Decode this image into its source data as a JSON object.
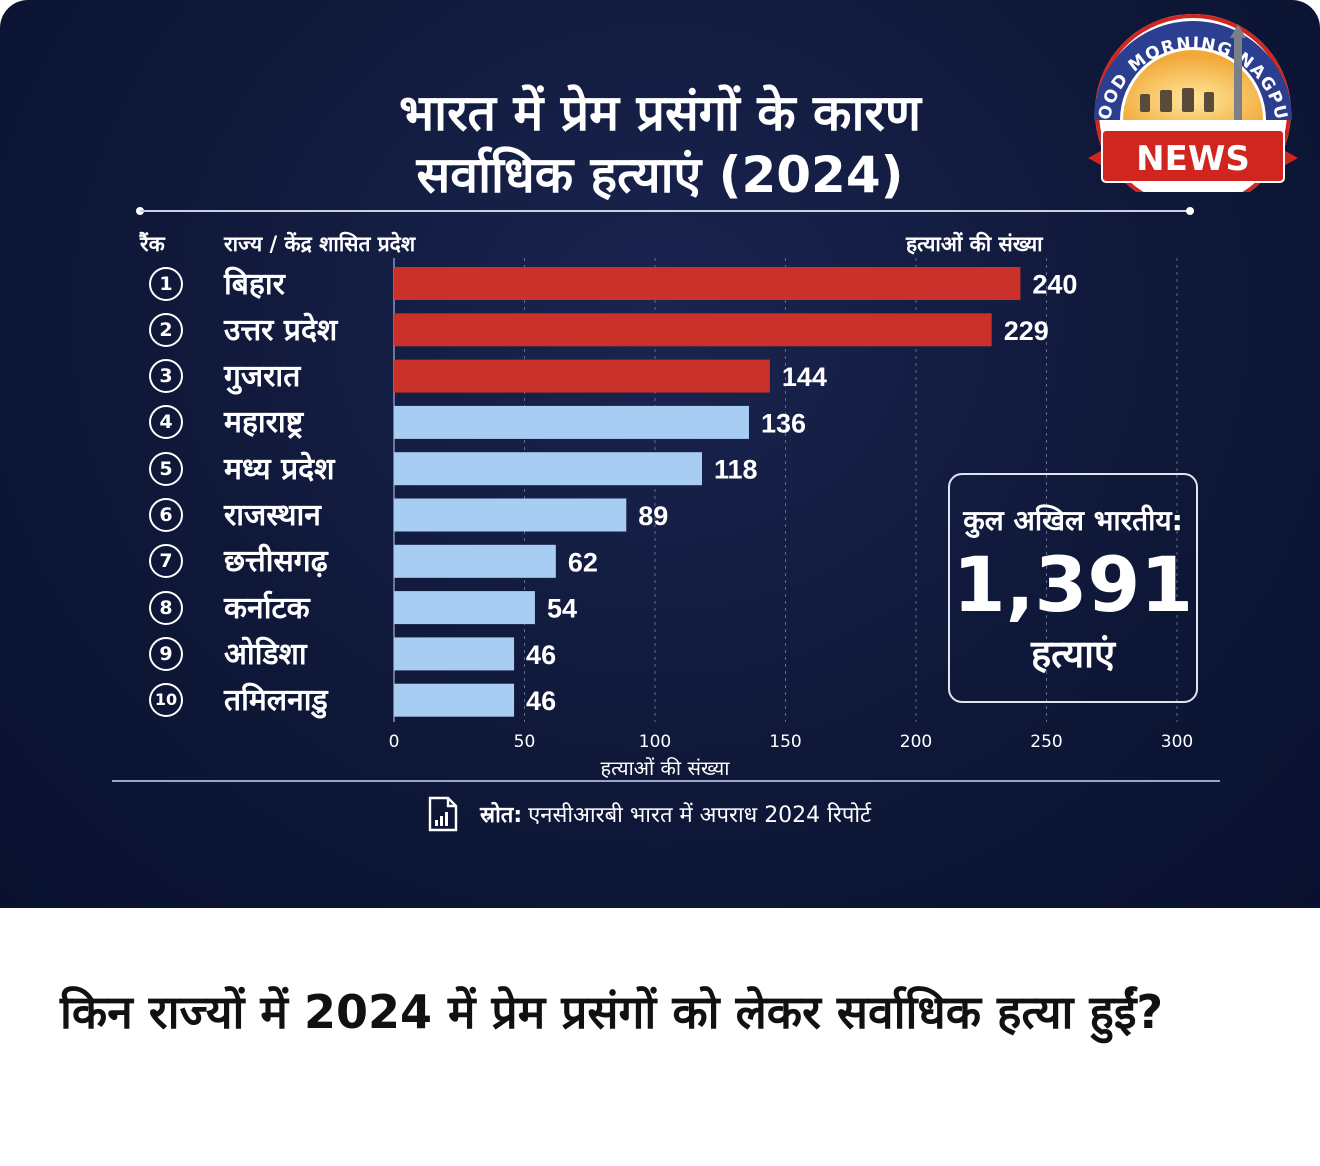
{
  "headline": {
    "line1": "भारत में प्रेम प्रसंगों के कारण",
    "line2": "सर्वाधिक हत्याएं (2024)"
  },
  "columns": {
    "rank": "रैंक",
    "state": "राज्य / केंद्र शासित प्रदेश",
    "count": "हत्याओं की संख्या"
  },
  "chart_data": {
    "type": "bar",
    "orientation": "horizontal",
    "categories": [
      "बिहार",
      "उत्तर प्रदेश",
      "गुजरात",
      "महाराष्ट्र",
      "मध्य प्रदेश",
      "राजस्थान",
      "छत्तीसगढ़",
      "कर्नाटक",
      "ओडिशा",
      "तमिलनाडु"
    ],
    "ranks": [
      "1",
      "2",
      "3",
      "4",
      "5",
      "6",
      "7",
      "8",
      "9",
      "10"
    ],
    "values": [
      240,
      229,
      144,
      136,
      118,
      89,
      62,
      54,
      46,
      46
    ],
    "highlight_count": 3,
    "xlabel": "हत्याओं की संख्या",
    "xlim": [
      0,
      300
    ],
    "xticks": [
      0,
      50,
      100,
      150,
      200,
      250,
      300
    ],
    "grid": "vertical dashed",
    "colors": {
      "highlight": "#c9312a",
      "normal": "#a8cdf2"
    }
  },
  "total": {
    "label": "कुल अखिल भारतीय:",
    "value": "1,391",
    "unit": "हत्याएं"
  },
  "source": {
    "label": "स्रोत:",
    "text": "एनसीआरबी भारत में अपराध 2024 रिपोर्ट",
    "icon": "document-chart-icon"
  },
  "logo": {
    "top_text": "GOOD MORNING NAGPUR",
    "banner": "NEWS"
  },
  "question": "किन राज्यों में 2024 में प्रेम प्रसंगों को लेकर सर्वाधिक हत्या हुईं?"
}
